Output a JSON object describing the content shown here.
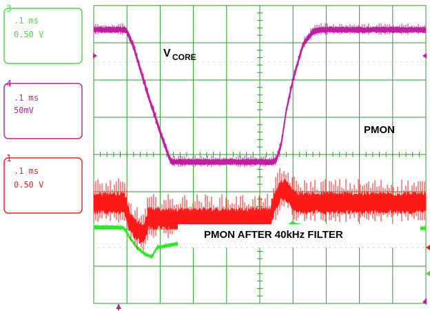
{
  "chart_data": {
    "type": "line",
    "title": "",
    "time_per_div": ".1 ms",
    "divisions_x": 10,
    "divisions_y": 8,
    "channels": [
      {
        "number": "3",
        "time_scale": ".1 ms",
        "volt_scale": "0.50 V",
        "color": "#44dd44"
      },
      {
        "number": "4",
        "time_scale": ".1 ms",
        "volt_scale": "50mV",
        "color": "#c020a0"
      },
      {
        "number": "1",
        "time_scale": ".1 ms",
        "volt_scale": "0.50 V",
        "color": "#ff1a1a"
      }
    ],
    "annotations": {
      "vcore_main": "V",
      "vcore_sub": "CORE",
      "pmon": "PMON",
      "pmon_filtered": "PMON AFTER 40kHz FILTER"
    },
    "series": [
      {
        "name": "V_CORE",
        "channel": "4",
        "color": "#c020a0",
        "noise_div": 0.08,
        "t_div": [
          0,
          0.95,
          1.0,
          1.2,
          1.6,
          2.0,
          2.3,
          2.35,
          2.45,
          5.4,
          5.5,
          5.65,
          5.8,
          6.0,
          6.3,
          6.6,
          6.8,
          10
        ],
        "v_div": [
          3.35,
          3.35,
          3.3,
          2.9,
          1.7,
          0.6,
          -0.15,
          -0.2,
          -0.2,
          -0.2,
          -0.15,
          0.3,
          1.2,
          2.0,
          2.95,
          3.3,
          3.35,
          3.35
        ]
      },
      {
        "name": "PMON",
        "channel": "1",
        "color": "#ff1a1a",
        "noise_div": 0.3,
        "t_div": [
          0,
          0.9,
          0.95,
          1.1,
          1.3,
          1.5,
          1.65,
          1.85,
          2.3,
          5.3,
          5.4,
          5.6,
          5.8,
          5.95,
          6.1,
          6.3,
          6.6,
          10
        ],
        "v_div": [
          -1.3,
          -1.3,
          -1.35,
          -1.85,
          -2.05,
          -2.15,
          -1.7,
          -1.72,
          -1.72,
          -1.72,
          -1.4,
          -1.0,
          -0.95,
          -1.15,
          -1.3,
          -1.3,
          -1.3,
          -1.3
        ]
      },
      {
        "name": "PMON AFTER 40kHz FILTER",
        "channel": "3",
        "color": "#22ee22",
        "noise_div": 0.04,
        "t_div": [
          0,
          0.6,
          0.9,
          1.1,
          1.3,
          1.55,
          1.75,
          1.9,
          2.5,
          5.3,
          5.5,
          5.7,
          5.95,
          6.15,
          6.4,
          7.0,
          10
        ],
        "v_div": [
          -1.95,
          -1.95,
          -1.97,
          -2.25,
          -2.5,
          -2.68,
          -2.75,
          -2.5,
          -2.4,
          -2.4,
          -2.3,
          -2.05,
          -1.85,
          -1.9,
          -1.95,
          -1.97,
          -1.98
        ]
      }
    ],
    "grid": true
  }
}
